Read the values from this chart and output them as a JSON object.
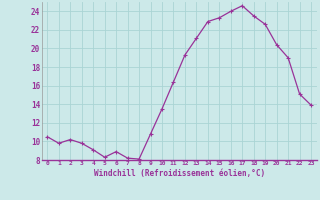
{
  "x": [
    0,
    1,
    2,
    3,
    4,
    5,
    6,
    7,
    8,
    9,
    10,
    11,
    12,
    13,
    14,
    15,
    16,
    17,
    18,
    19,
    20,
    21,
    22,
    23
  ],
  "y": [
    10.5,
    9.8,
    10.2,
    9.8,
    9.1,
    8.3,
    8.9,
    8.2,
    8.1,
    10.8,
    13.5,
    16.4,
    19.3,
    21.1,
    22.9,
    23.3,
    24.0,
    24.6,
    23.5,
    22.6,
    20.4,
    19.0,
    15.1,
    13.9
  ],
  "line_color": "#993399",
  "marker": "+",
  "marker_size": 3,
  "marker_lw": 0.8,
  "bg_color": "#cce9e9",
  "grid_color": "#aad4d4",
  "xlabel": "Windchill (Refroidissement éolien,°C)",
  "xlabel_color": "#993399",
  "tick_color": "#993399",
  "ylim": [
    8,
    25
  ],
  "yticks": [
    8,
    10,
    12,
    14,
    16,
    18,
    20,
    22,
    24
  ],
  "xlim": [
    -0.5,
    23.5
  ],
  "xticks": [
    0,
    1,
    2,
    3,
    4,
    5,
    6,
    7,
    8,
    9,
    10,
    11,
    12,
    13,
    14,
    15,
    16,
    17,
    18,
    19,
    20,
    21,
    22,
    23
  ],
  "xtick_labels": [
    "0",
    "1",
    "2",
    "3",
    "4",
    "5",
    "6",
    "7",
    "8",
    "9",
    "10",
    "11",
    "12",
    "13",
    "14",
    "15",
    "16",
    "17",
    "18",
    "19",
    "20",
    "21",
    "22",
    "23"
  ]
}
